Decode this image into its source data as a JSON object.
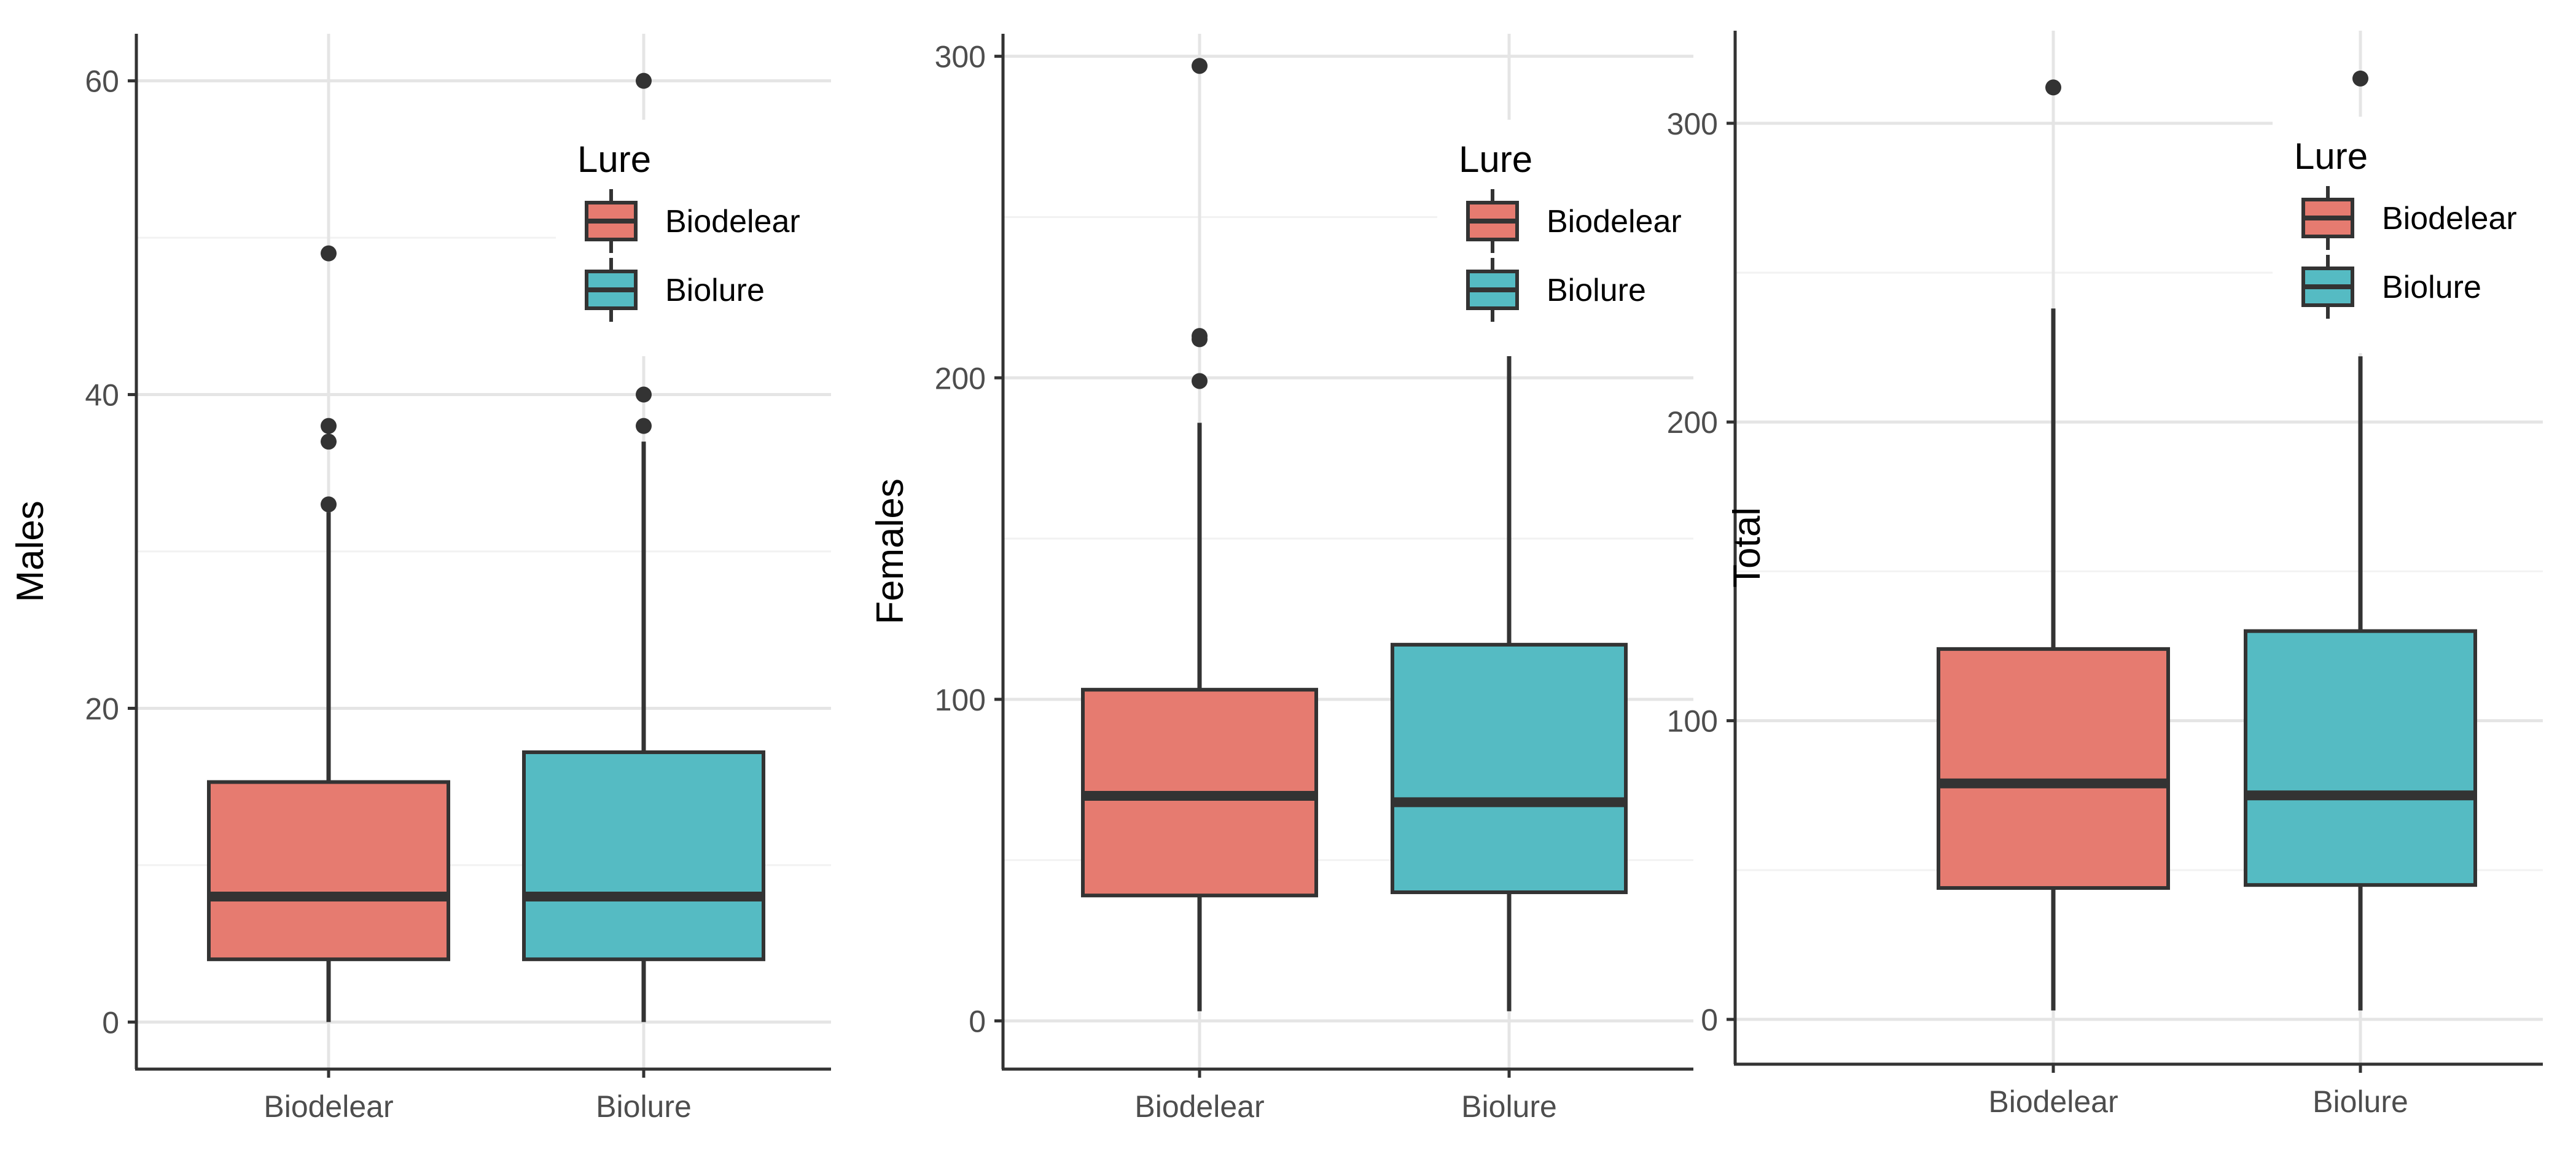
{
  "chart_data": [
    {
      "type": "box",
      "ylabel": "Males",
      "categories": [
        "Biodelear",
        "Biolure"
      ],
      "ylim": [
        -3,
        63
      ],
      "y_ticks": [
        0,
        20,
        40,
        60
      ],
      "y_tick_labels": [
        "0",
        "20",
        "40",
        "60"
      ],
      "grid": true,
      "legend": {
        "title": "Lure",
        "entries": [
          "Biodelear",
          "Biolure"
        ],
        "position": "top-right"
      },
      "boxes": [
        {
          "category": "Biodelear",
          "min": 0,
          "q1": 4,
          "median": 8,
          "q3": 15.3,
          "max": 32.5,
          "outliers": [
            33,
            37,
            38,
            49
          ],
          "color": "#e67b70"
        },
        {
          "category": "Biolure",
          "min": 0,
          "q1": 4,
          "median": 8,
          "q3": 17.2,
          "max": 37,
          "outliers": [
            38,
            40,
            60
          ],
          "color": "#55bbc3"
        }
      ]
    },
    {
      "type": "box",
      "ylabel": "Females",
      "categories": [
        "Biodelear",
        "Biolure"
      ],
      "ylim": [
        -15,
        307
      ],
      "y_ticks": [
        0,
        100,
        200,
        300
      ],
      "y_tick_labels": [
        "0",
        "100",
        "200",
        "300"
      ],
      "grid": true,
      "legend": {
        "title": "Lure",
        "entries": [
          "Biodelear",
          "Biolure"
        ],
        "position": "top-right"
      },
      "boxes": [
        {
          "category": "Biodelear",
          "min": 3,
          "q1": 39,
          "median": 70,
          "q3": 103,
          "max": 186,
          "outliers": [
            199,
            212,
            213,
            297
          ],
          "color": "#e67b70"
        },
        {
          "category": "Biolure",
          "min": 3,
          "q1": 40,
          "median": 68,
          "q3": 117,
          "max": 210,
          "outliers": [],
          "color": "#55bbc3"
        }
      ]
    },
    {
      "type": "box",
      "ylabel": "Total",
      "categories": [
        "Biodelear",
        "Biolure"
      ],
      "ylim": [
        -15,
        331
      ],
      "y_ticks": [
        0,
        100,
        200,
        300
      ],
      "y_tick_labels": [
        "0",
        "100",
        "200",
        "300"
      ],
      "grid": true,
      "legend": {
        "title": "Lure",
        "entries": [
          "Biodelear",
          "Biolure"
        ],
        "position": "top-right"
      },
      "boxes": [
        {
          "category": "Biodelear",
          "min": 3,
          "q1": 44,
          "median": 79,
          "q3": 124,
          "max": 238,
          "outliers": [
            312
          ],
          "color": "#e67b70"
        },
        {
          "category": "Biolure",
          "min": 3,
          "q1": 45,
          "median": 75,
          "q3": 130,
          "max": 222,
          "outliers": [
            315
          ],
          "color": "#55bbc3"
        }
      ]
    }
  ]
}
